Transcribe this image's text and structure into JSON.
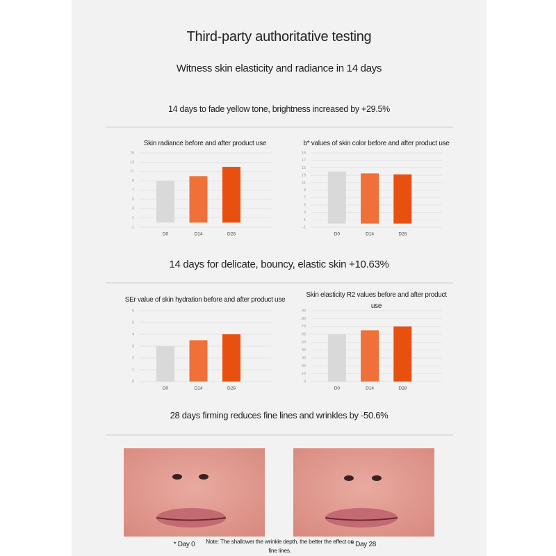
{
  "header": {
    "title": "Third-party authoritative testing",
    "subtitle": "Witness skin elasticity and radiance in 14 days"
  },
  "sections": [
    {
      "heading": "14 days to fade yellow tone, brightness increased by +29.5%"
    },
    {
      "heading": "14 days for delicate, bouncy, elastic skin +10.63%"
    },
    {
      "heading": "28 days firming reduces fine lines and wrinkles by -50.6%"
    }
  ],
  "chart_data": [
    {
      "type": "bar",
      "title": "Skin radiance before and after product use",
      "categories": [
        "D0",
        "D14",
        "D28"
      ],
      "values": [
        9,
        10,
        12
      ],
      "colors": [
        "#d9d9d9",
        "#ef7038",
        "#e8500f"
      ],
      "ylim": [
        -1,
        15
      ],
      "yticks": [
        -1,
        1,
        3,
        5,
        7,
        9,
        11,
        13,
        15
      ],
      "grid": true
    },
    {
      "type": "bar",
      "title": "b* values of skin color before and after product use",
      "categories": [
        "D0",
        "D14",
        "D28"
      ],
      "values": [
        14,
        13.5,
        13.2
      ],
      "colors": [
        "#d9d9d9",
        "#ef7038",
        "#e8500f"
      ],
      "ylim": [
        -1,
        19
      ],
      "yticks": [
        -1,
        1,
        3,
        5,
        7,
        9,
        11,
        13,
        15,
        17,
        19
      ],
      "grid": true
    },
    {
      "type": "bar",
      "title": "SEr value of skin hydration before and after product use",
      "categories": [
        "D0",
        "D14",
        "D28"
      ],
      "values": [
        3,
        3.5,
        4
      ],
      "colors": [
        "#d9d9d9",
        "#ef7038",
        "#e8500f"
      ],
      "ylim": [
        0,
        6
      ],
      "yticks": [
        0,
        1,
        2,
        3,
        4,
        5,
        6
      ],
      "grid": true
    },
    {
      "type": "bar",
      "title": "Skin elasticity R2 values before and after product use",
      "categories": [
        "D0",
        "D14",
        "D28"
      ],
      "values": [
        60,
        65,
        70
      ],
      "colors": [
        "#d9d9d9",
        "#ef7038",
        "#e8500f"
      ],
      "ylim": [
        0,
        90
      ],
      "yticks": [
        0,
        10,
        20,
        30,
        40,
        50,
        60,
        70,
        80,
        90
      ],
      "grid": true
    }
  ],
  "photos": {
    "captions": [
      "* Day 0",
      "* Day 28"
    ],
    "note": "Note: The shallower the wrinkle depth, the better the effect on fine lines."
  }
}
